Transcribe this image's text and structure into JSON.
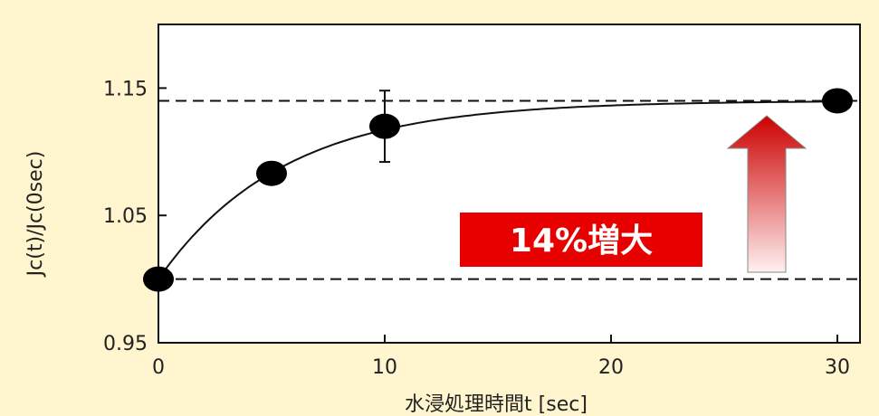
{
  "colors": {
    "background": "#FFF5CF",
    "plot_background": "#FFFFFF",
    "data": "#000000",
    "badge": "#E60000",
    "arrow_top": "#CC0000",
    "arrow_bottom": "#FFF0F0"
  },
  "chart_data": {
    "type": "scatter",
    "xlabel": "水浸処理時間t [sec]",
    "ylabel": "Jc(t)/Jc(0sec)",
    "xlim": [
      0,
      31
    ],
    "ylim": [
      0.95,
      1.2
    ],
    "x_ticks": [
      "0",
      "10",
      "20",
      "30"
    ],
    "x_tick_values": [
      0,
      10,
      20,
      30
    ],
    "y_ticks": [
      "0.95",
      "1.05",
      "1.15"
    ],
    "y_tick_values": [
      0.95,
      1.05,
      1.15
    ],
    "grid": false,
    "series": [
      {
        "x": [
          0,
          5,
          10,
          30
        ],
        "y": [
          1.0,
          1.083,
          1.12,
          1.14
        ],
        "error": [
          null,
          null,
          0.028,
          null
        ]
      }
    ],
    "fit_curve": {
      "equation": "y = 1.14 - 0.14*exp(-t/5.5)"
    },
    "reference_lines": [
      1.0,
      1.14
    ],
    "annotations": [
      {
        "text": "14%増大",
        "style": "red badge with upward gradient arrow"
      }
    ]
  }
}
